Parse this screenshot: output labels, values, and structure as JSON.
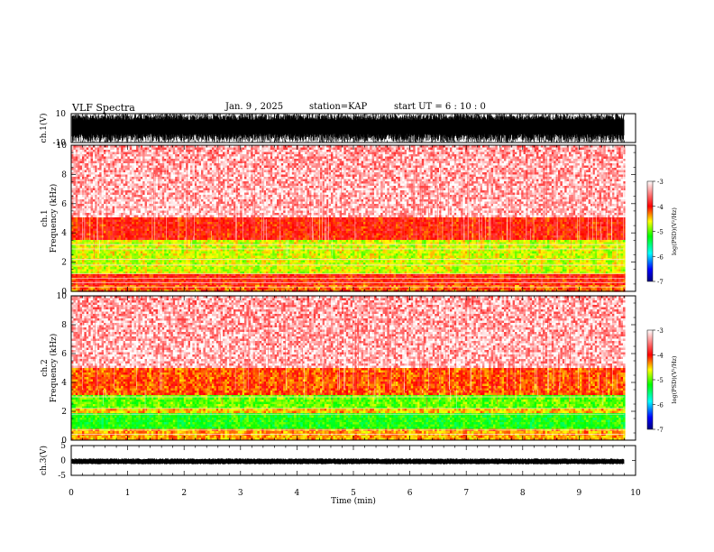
{
  "header": {
    "title": "VLF Spectra",
    "date": "Jan. 9 , 2025",
    "station": "station=KAP",
    "start": "start UT =  6 : 10 : 0"
  },
  "chart_data": [
    {
      "type": "line",
      "panel": "ch1-waveform",
      "ylabel": "ch.1(V)",
      "ylim": [
        -10,
        10
      ],
      "tick_labels": [
        "10",
        "-10"
      ],
      "xlim": [
        0,
        10
      ],
      "description_value_range": "dense broadband noise filling roughly -10 to 10 V over 0-9.8 min"
    },
    {
      "type": "heatmap",
      "panel": "ch1-spectrogram",
      "ylabel": "ch.1\nFrequency (kHz)",
      "ylim": [
        0,
        10
      ],
      "yticks": [
        0,
        2,
        4,
        6,
        8,
        10
      ],
      "xlim": [
        0,
        10
      ],
      "data_extent_min": 9.8,
      "colorbar": {
        "label": "log(PSD)(V²/Hz)",
        "range": [
          -7,
          -3
        ],
        "ticks": [
          "-3",
          "-4",
          "-5",
          "-6",
          "-7"
        ]
      },
      "bands": [
        {
          "f_low": 0.0,
          "f_high": 0.5,
          "log_psd": -4.2
        },
        {
          "f_low": 0.5,
          "f_high": 1.2,
          "log_psd": -4.0
        },
        {
          "f_low": 1.2,
          "f_high": 3.5,
          "log_psd": -4.7
        },
        {
          "f_low": 3.5,
          "f_high": 5.0,
          "log_psd": -4.0
        },
        {
          "f_low": 5.0,
          "f_high": 10.0,
          "log_psd": -3.4
        }
      ],
      "lines_kHz": [
        0.3,
        0.6,
        0.9,
        1.2,
        1.8,
        2.2,
        2.9,
        3.2
      ]
    },
    {
      "type": "heatmap",
      "panel": "ch2-spectrogram",
      "ylabel": "ch.2\nFrequency (kHz)",
      "ylim": [
        0,
        10
      ],
      "yticks": [
        0,
        2,
        4,
        6,
        8,
        10
      ],
      "xlim": [
        0,
        10
      ],
      "data_extent_min": 9.8,
      "colorbar": {
        "label": "log(PSD)(V²/Hz)",
        "range": [
          -7,
          -3
        ],
        "ticks": [
          "-3",
          "-4",
          "-5",
          "-6",
          "-7"
        ]
      },
      "bands": [
        {
          "f_low": 0.0,
          "f_high": 0.8,
          "log_psd": -4.2
        },
        {
          "f_low": 0.8,
          "f_high": 1.8,
          "log_psd": -5.0
        },
        {
          "f_low": 1.8,
          "f_high": 2.2,
          "log_psd": -4.3
        },
        {
          "f_low": 2.2,
          "f_high": 3.2,
          "log_psd": -4.8
        },
        {
          "f_low": 3.2,
          "f_high": 5.0,
          "log_psd": -4.0
        },
        {
          "f_low": 5.0,
          "f_high": 10.0,
          "log_psd": -3.4
        }
      ],
      "lines_kHz": [
        0.4,
        0.7,
        1.8,
        2.2,
        3.0
      ]
    },
    {
      "type": "line",
      "panel": "ch3-waveform",
      "ylabel": "ch.3(V)",
      "ylim": [
        -5,
        5
      ],
      "yticks": [
        5,
        0,
        -5
      ],
      "tick_labels": [
        "5",
        "0",
        "-5"
      ],
      "xlim": [
        0,
        10
      ],
      "xlabel": "Time (min)",
      "xticks": [
        0,
        1,
        2,
        3,
        4,
        5,
        6,
        7,
        8,
        9,
        10
      ],
      "description_value_range": "narrow band around -1 to 0.5 V"
    }
  ]
}
